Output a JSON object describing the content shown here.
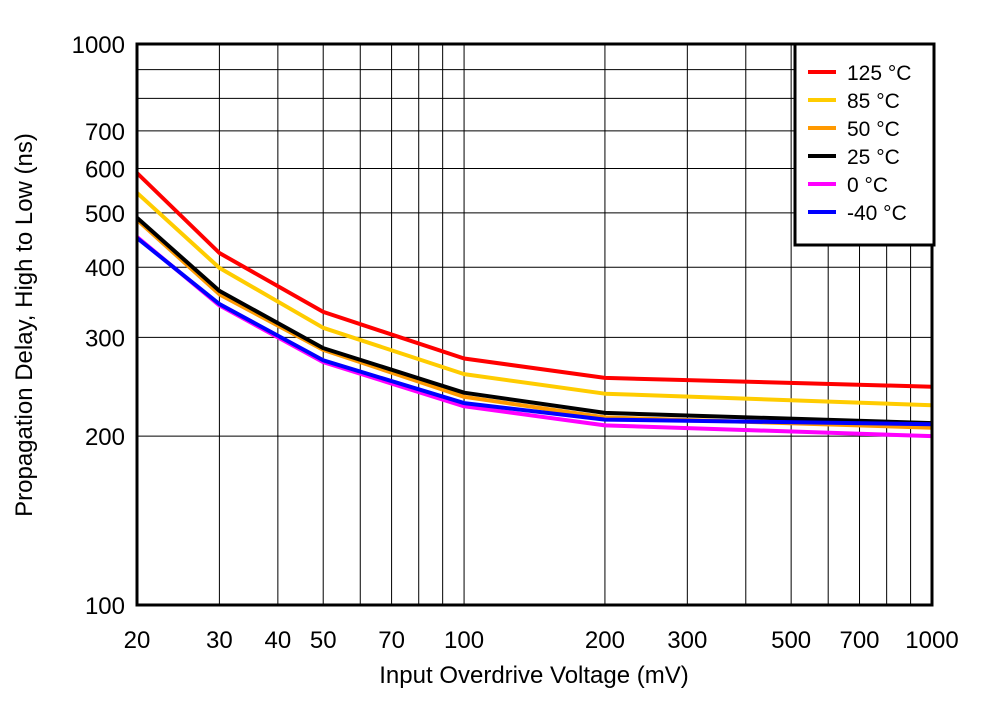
{
  "chart_data": {
    "type": "line",
    "xlabel": "Input Overdrive Voltage (mV)",
    "ylabel": "Propagation Delay, High to Low (ns)",
    "xscale": "log",
    "yscale": "log",
    "xlim": [
      20,
      1000
    ],
    "ylim": [
      100,
      1000
    ],
    "grid": true,
    "legend_position": "top-right",
    "x_tick_labels": [
      "20",
      "30",
      "40",
      "50",
      "70",
      "100",
      "200",
      "300",
      "500",
      "700",
      "1000"
    ],
    "y_tick_labels": [
      "100",
      "200",
      "300",
      "400",
      "500",
      "600",
      "700",
      "1000"
    ],
    "x": [
      20,
      30,
      50,
      100,
      200,
      1000
    ],
    "series": [
      {
        "name": "125 °C",
        "color": "#ff0000",
        "values": [
          589,
          424,
          333,
          275,
          254,
          245
        ]
      },
      {
        "name": "85 °C",
        "color": "#ffcc00",
        "values": [
          543,
          399,
          312,
          258,
          238,
          227
        ]
      },
      {
        "name": "50 °C",
        "color": "#ff9900",
        "values": [
          486,
          358,
          285,
          235,
          216,
          207
        ]
      },
      {
        "name": "25 °C",
        "color": "#000000",
        "values": [
          490,
          363,
          287,
          239,
          220,
          211
        ]
      },
      {
        "name": "0 °C",
        "color": "#ff00ff",
        "values": [
          453,
          342,
          271,
          226,
          209,
          200
        ]
      },
      {
        "name": "-40 °C",
        "color": "#0000ff",
        "values": [
          451,
          344,
          273,
          229,
          214,
          210
        ]
      }
    ]
  }
}
